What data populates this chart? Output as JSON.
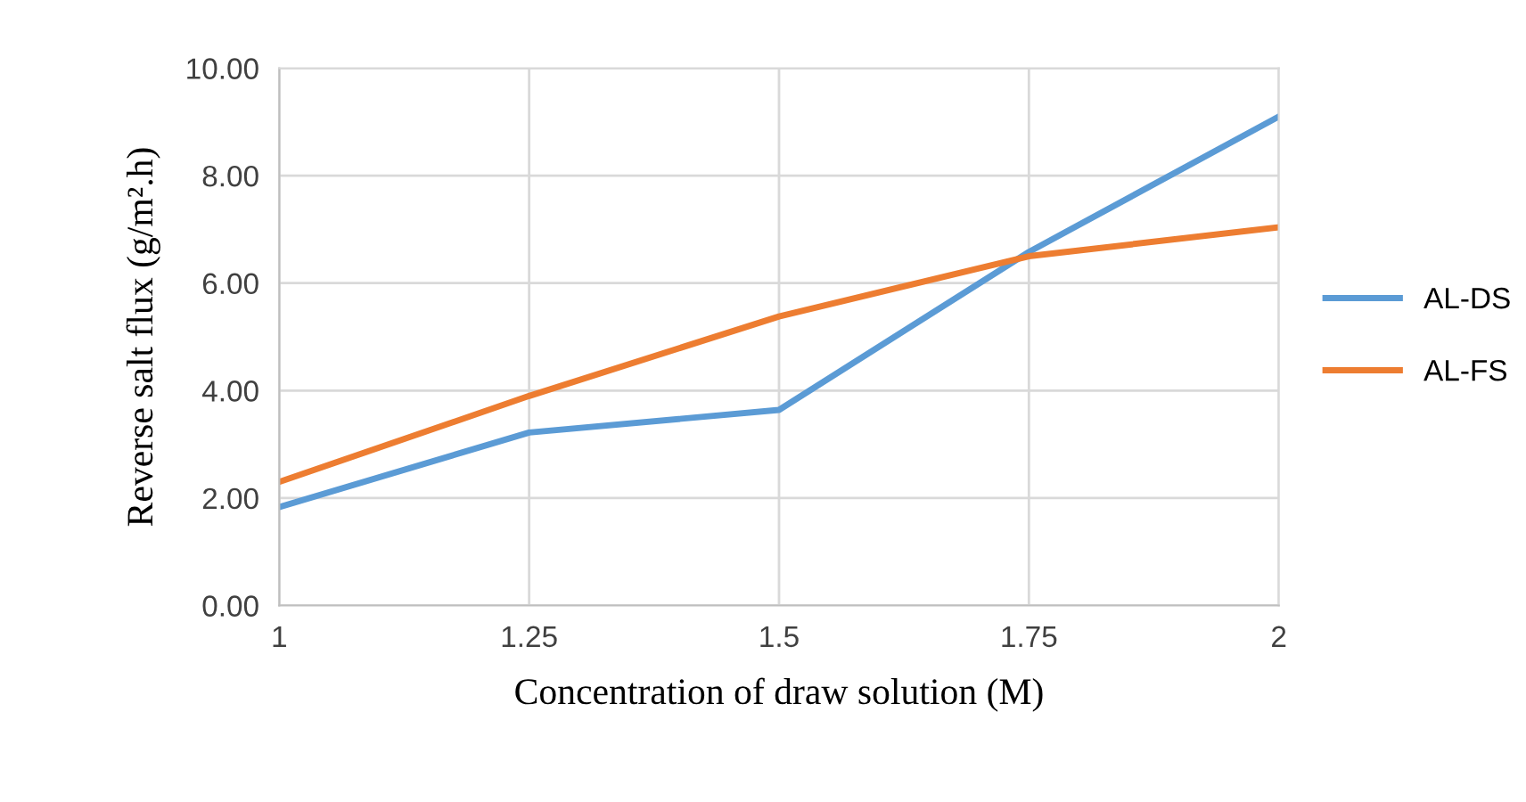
{
  "chart_data": {
    "type": "line",
    "xlabel": "Concentration of draw solution (M)",
    "ylabel": "Reverse salt flux (g/m².h)",
    "x": [
      1,
      1.25,
      1.5,
      1.75,
      2
    ],
    "series": [
      {
        "name": "AL-DS",
        "color": "#5b9bd5",
        "values": [
          1.83,
          3.22,
          3.64,
          6.58,
          9.1
        ]
      },
      {
        "name": "AL-FS",
        "color": "#ed7d31",
        "values": [
          2.3,
          3.9,
          5.38,
          6.5,
          7.04
        ]
      }
    ],
    "xlim": [
      1,
      2
    ],
    "xticks": [
      {
        "value": 1,
        "label": "1"
      },
      {
        "value": 1.25,
        "label": "1.25"
      },
      {
        "value": 1.5,
        "label": "1.5"
      },
      {
        "value": 1.75,
        "label": "1.75"
      },
      {
        "value": 2,
        "label": "2"
      }
    ],
    "ylim": [
      0,
      10
    ],
    "yticks": [
      {
        "value": 0,
        "label": "0.00"
      },
      {
        "value": 2,
        "label": "2.00"
      },
      {
        "value": 4,
        "label": "4.00"
      },
      {
        "value": 6,
        "label": "6.00"
      },
      {
        "value": 8,
        "label": "8.00"
      },
      {
        "value": 10,
        "label": "10.00"
      }
    ],
    "grid": true,
    "legend": "right",
    "marker": "none",
    "line_style": "solid"
  }
}
